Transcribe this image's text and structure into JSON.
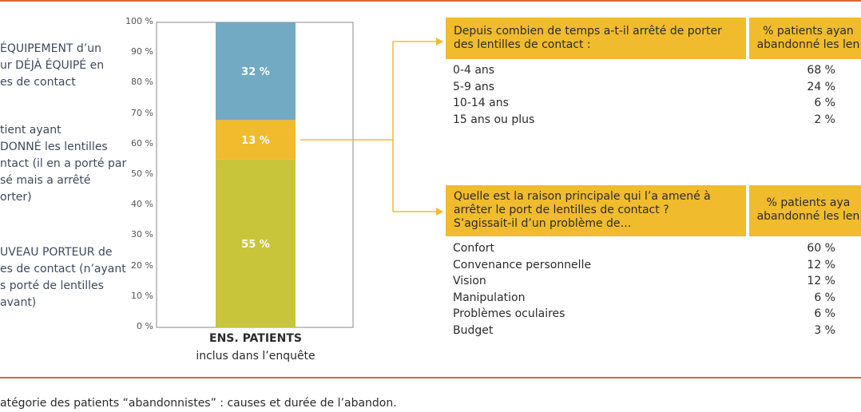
{
  "left_legend": [
    "ÉQUIPEMENT d’un\nur DÉJÀ ÉQUIPÉ en\nes de contact",
    "tient ayant\nDONNÉ les lentilles\nntact (il en a porté par\nsé mais a arrêté\norter)",
    "UVEAU PORTEUR de\nes de contact (n’ayant\ns porté de lentilles\navant)"
  ],
  "chart_data": {
    "type": "bar",
    "stacked": true,
    "categories": [
      "ENS. PATIENTS"
    ],
    "category_sub": "inclus dans l’enquête",
    "ylim": [
      0,
      100
    ],
    "yticks": [
      "0 %",
      "10 %",
      "20 %",
      "30 %",
      "40 %",
      "50 %",
      "60 %",
      "70 %",
      "80 %",
      "90 %",
      "100 %"
    ],
    "grid": false,
    "series": [
      {
        "values": [
          55
        ],
        "label": "55 %",
        "color": "#c8c53a"
      },
      {
        "values": [
          13
        ],
        "label": "13 %",
        "color": "#f0bb2d"
      },
      {
        "values": [
          32
        ],
        "label": "32 %",
        "color": "#72aac4"
      }
    ]
  },
  "table_duration": {
    "header": "Depuis combien de temps a-t-il arrêté de porter\ndes lentilles de contact :",
    "pct_header": "% patients ayan\nabandonné les len",
    "rows": [
      {
        "label": "0-4 ans",
        "value": "68 %"
      },
      {
        "label": "5-9 ans",
        "value": "24 %"
      },
      {
        "label": "10-14 ans",
        "value": "6 %"
      },
      {
        "label": "15 ans ou plus",
        "value": "2 %"
      }
    ]
  },
  "table_reason": {
    "header": "Quelle est la raison principale qui l’a amené à\narrêter le port de lentilles de contact ?\nS’agissait-il d’un problème de…",
    "pct_header": "% patients aya\nabandonné les len",
    "rows": [
      {
        "label": "Confort",
        "value": "60 %"
      },
      {
        "label": "Convenance personnelle",
        "value": "12 %"
      },
      {
        "label": "Vision",
        "value": "12 %"
      },
      {
        "label": "Manipulation",
        "value": "6 %"
      },
      {
        "label": "Problèmes oculaires",
        "value": "6 %"
      },
      {
        "label": "Budget",
        "value": "3 %"
      }
    ]
  },
  "caption": "atégorie des patients “abandonnistes” : causes et durée de l’abandon.",
  "colors": {
    "rule": "#d9663a",
    "header_bg": "#f0bb2d",
    "connector": "#f0bb2d"
  }
}
